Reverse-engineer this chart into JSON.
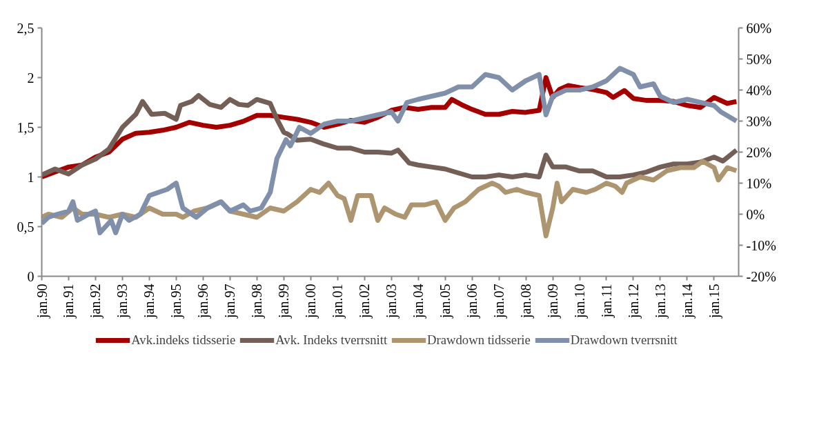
{
  "chart_data": {
    "type": "line",
    "xlim": [
      "1990-01",
      "2015-12"
    ],
    "xticks": [
      {
        "value": "1990-01",
        "label": "jan.90"
      },
      {
        "value": "1991-01",
        "label": "jan.91"
      },
      {
        "value": "1992-01",
        "label": "jan.92"
      },
      {
        "value": "1993-01",
        "label": "jan.93"
      },
      {
        "value": "1994-01",
        "label": "jan.94"
      },
      {
        "value": "1995-01",
        "label": "jan.95"
      },
      {
        "value": "1996-01",
        "label": "jan.96"
      },
      {
        "value": "1997-01",
        "label": "jan.97"
      },
      {
        "value": "1998-01",
        "label": "jan.98"
      },
      {
        "value": "1999-01",
        "label": "jan.99"
      },
      {
        "value": "2000-01",
        "label": "jan.00"
      },
      {
        "value": "2001-01",
        "label": "jan.01"
      },
      {
        "value": "2002-01",
        "label": "jan.02"
      },
      {
        "value": "2003-01",
        "label": "jan.03"
      },
      {
        "value": "2004-01",
        "label": "jan.04"
      },
      {
        "value": "2005-01",
        "label": "jan.05"
      },
      {
        "value": "2006-01",
        "label": "jan.06"
      },
      {
        "value": "2007-01",
        "label": "jan.07"
      },
      {
        "value": "2008-01",
        "label": "jan.08"
      },
      {
        "value": "2009-01",
        "label": "jan.09"
      },
      {
        "value": "2010-01",
        "label": "jan.10"
      },
      {
        "value": "2011-01",
        "label": "jan.11"
      },
      {
        "value": "2012-01",
        "label": "jan.12"
      },
      {
        "value": "2013-01",
        "label": "jan.13"
      },
      {
        "value": "2014-01",
        "label": "jan.14"
      },
      {
        "value": "2015-01",
        "label": "jan.15"
      }
    ],
    "ylim": [
      0,
      2.5
    ],
    "yticks": [
      0,
      {
        "value": 0.5,
        "label": "0,5"
      },
      1,
      {
        "value": 1.5,
        "label": "1,5"
      },
      2,
      {
        "value": 2.5,
        "label": "2,5"
      }
    ],
    "y2lim": [
      -20,
      60
    ],
    "y2ticks": [
      {
        "value": -20,
        "label": "-20%"
      },
      {
        "value": -10,
        "label": "-10%"
      },
      {
        "value": 0,
        "label": "0%"
      },
      {
        "value": 10,
        "label": "10%"
      },
      {
        "value": 20,
        "label": "20%"
      },
      {
        "value": 30,
        "label": "30%"
      },
      {
        "value": 40,
        "label": "40%"
      },
      {
        "value": 50,
        "label": "50%"
      },
      {
        "value": 60,
        "label": "60%"
      }
    ],
    "grid": false,
    "legend": "bottom",
    "marker": "none",
    "line_style": "solid",
    "series": [
      {
        "name": "Avk.indeks tidsserie",
        "color": "#a50000",
        "x": [
          "1990-01",
          "1990-07",
          "1991-01",
          "1991-07",
          "1992-01",
          "1992-07",
          "1993-01",
          "1993-07",
          "1994-01",
          "1994-07",
          "1995-01",
          "1995-07",
          "1996-01",
          "1996-07",
          "1997-01",
          "1997-07",
          "1998-01",
          "1998-07",
          "1999-01",
          "1999-07",
          "2000-01",
          "2000-07",
          "2001-01",
          "2001-07",
          "2002-01",
          "2002-07",
          "2003-01",
          "2003-07",
          "2004-01",
          "2004-07",
          "2005-01",
          "2005-04",
          "2005-09",
          "2006-01",
          "2006-07",
          "2007-01",
          "2007-07",
          "2008-01",
          "2008-07",
          "2008-10",
          "2009-01",
          "2009-04",
          "2009-08",
          "2010-01",
          "2010-07",
          "2011-01",
          "2011-04",
          "2011-09",
          "2012-01",
          "2012-07",
          "2013-01",
          "2013-07",
          "2014-01",
          "2014-07",
          "2015-01",
          "2015-07",
          "2015-11"
        ],
        "values": [
          1.0,
          1.05,
          1.1,
          1.12,
          1.2,
          1.25,
          1.38,
          1.44,
          1.45,
          1.47,
          1.5,
          1.55,
          1.52,
          1.5,
          1.52,
          1.56,
          1.62,
          1.62,
          1.6,
          1.58,
          1.55,
          1.5,
          1.53,
          1.57,
          1.55,
          1.6,
          1.67,
          1.7,
          1.68,
          1.7,
          1.7,
          1.78,
          1.72,
          1.68,
          1.63,
          1.63,
          1.66,
          1.65,
          1.67,
          2.0,
          1.8,
          1.88,
          1.92,
          1.9,
          1.88,
          1.85,
          1.8,
          1.87,
          1.79,
          1.77,
          1.77,
          1.76,
          1.72,
          1.7,
          1.8,
          1.74,
          1.76
        ]
      },
      {
        "name": "Avk. Indeks tverrsnitt",
        "color": "#735f55",
        "x": [
          "1990-01",
          "1990-07",
          "1991-01",
          "1991-07",
          "1992-01",
          "1992-07",
          "1993-01",
          "1993-07",
          "1993-10",
          "1994-02",
          "1994-08",
          "1995-01",
          "1995-03",
          "1995-08",
          "1995-11",
          "1996-04",
          "1996-09",
          "1997-01",
          "1997-05",
          "1997-09",
          "1998-01",
          "1998-07",
          "1998-10",
          "1999-01",
          "1999-03",
          "1999-07",
          "2000-01",
          "2000-07",
          "2001-01",
          "2001-07",
          "2002-01",
          "2002-07",
          "2003-01",
          "2003-04",
          "2003-09",
          "2004-01",
          "2004-07",
          "2005-01",
          "2005-07",
          "2006-01",
          "2006-07",
          "2007-01",
          "2007-07",
          "2008-01",
          "2008-07",
          "2008-10",
          "2009-01",
          "2009-07",
          "2010-01",
          "2010-07",
          "2011-01",
          "2011-07",
          "2012-01",
          "2012-07",
          "2013-01",
          "2013-07",
          "2014-01",
          "2014-07",
          "2015-01",
          "2015-05",
          "2015-11"
        ],
        "values": [
          1.02,
          1.08,
          1.03,
          1.12,
          1.18,
          1.28,
          1.5,
          1.63,
          1.76,
          1.63,
          1.64,
          1.58,
          1.72,
          1.76,
          1.82,
          1.73,
          1.7,
          1.78,
          1.73,
          1.72,
          1.78,
          1.74,
          1.58,
          1.45,
          1.43,
          1.37,
          1.38,
          1.33,
          1.29,
          1.29,
          1.25,
          1.25,
          1.24,
          1.27,
          1.14,
          1.12,
          1.1,
          1.08,
          1.04,
          1.0,
          1.0,
          1.02,
          1.0,
          1.02,
          1.0,
          1.22,
          1.1,
          1.1,
          1.06,
          1.06,
          1.0,
          1.0,
          1.02,
          1.05,
          1.1,
          1.13,
          1.13,
          1.15,
          1.2,
          1.16,
          1.27
        ]
      },
      {
        "name": "Drawdown tidsserie",
        "color": "#ad9570",
        "axis": "y2",
        "x": [
          "1990-01",
          "1990-04",
          "1990-10",
          "1991-03",
          "1991-07",
          "1992-01",
          "1992-07",
          "1993-01",
          "1993-07",
          "1994-01",
          "1994-07",
          "1995-01",
          "1995-04",
          "1995-09",
          "1996-03",
          "1996-09",
          "1997-01",
          "1997-07",
          "1998-01",
          "1998-07",
          "1999-01",
          "1999-07",
          "2000-01",
          "2000-05",
          "2000-09",
          "2001-01",
          "2001-04",
          "2001-07",
          "2001-10",
          "2002-04",
          "2002-07",
          "2002-10",
          "2003-03",
          "2003-07",
          "2003-10",
          "2004-04",
          "2004-09",
          "2005-01",
          "2005-05",
          "2005-10",
          "2006-04",
          "2006-10",
          "2007-01",
          "2007-04",
          "2007-09",
          "2008-01",
          "2008-07",
          "2008-10",
          "2009-01",
          "2009-03",
          "2009-05",
          "2009-10",
          "2010-04",
          "2010-08",
          "2011-01",
          "2011-05",
          "2011-08",
          "2011-10",
          "2012-04",
          "2012-10",
          "2013-04",
          "2013-10",
          "2014-04",
          "2014-08",
          "2015-01",
          "2015-03",
          "2015-07",
          "2015-11"
        ],
        "values": [
          -1,
          0,
          -1,
          2,
          0,
          0,
          -1,
          0,
          -1,
          2,
          0,
          0,
          -1,
          1,
          2,
          4,
          1,
          0,
          -1,
          2,
          1,
          4,
          8,
          7,
          10,
          6,
          5,
          -2,
          6,
          6,
          -2,
          2,
          0,
          -1,
          3,
          3,
          4,
          -2,
          2,
          4,
          8,
          10,
          9,
          7,
          8,
          7,
          6,
          -7,
          2,
          10,
          4,
          8,
          7,
          8,
          10,
          9,
          7,
          10,
          12,
          11,
          14,
          15,
          15,
          17,
          15,
          11,
          15,
          14
        ]
      },
      {
        "name": "Drawdown tverrsnitt",
        "color": "#8190aa",
        "axis": "y2",
        "x": [
          "1990-01",
          "1990-04",
          "1990-08",
          "1991-01",
          "1991-03",
          "1991-05",
          "1991-10",
          "1992-01",
          "1992-03",
          "1992-08",
          "1992-10",
          "1993-01",
          "1993-04",
          "1993-09",
          "1994-01",
          "1994-05",
          "1994-09",
          "1995-01",
          "1995-04",
          "1995-10",
          "1996-03",
          "1996-09",
          "1997-01",
          "1997-07",
          "1997-10",
          "1998-03",
          "1998-07",
          "1998-10",
          "1999-02",
          "1999-04",
          "1999-08",
          "2000-01",
          "2000-07",
          "2001-01",
          "2001-07",
          "2002-01",
          "2002-07",
          "2003-01",
          "2003-04",
          "2003-08",
          "2004-01",
          "2004-07",
          "2005-01",
          "2005-07",
          "2006-01",
          "2006-07",
          "2007-01",
          "2007-07",
          "2008-01",
          "2008-07",
          "2008-10",
          "2009-01",
          "2009-07",
          "2010-01",
          "2010-07",
          "2011-01",
          "2011-07",
          "2012-01",
          "2012-04",
          "2012-10",
          "2013-01",
          "2013-07",
          "2014-01",
          "2014-07",
          "2015-01",
          "2015-04",
          "2015-11"
        ],
        "values": [
          -3,
          -1,
          0,
          1,
          4,
          -2,
          0,
          1,
          -6,
          -2,
          -6,
          0,
          -2,
          0,
          6,
          7,
          8,
          10,
          2,
          -1,
          2,
          4,
          1,
          3,
          1,
          2,
          7,
          18,
          24,
          22,
          28,
          26,
          29,
          30,
          30,
          31,
          32,
          33,
          30,
          36,
          37,
          38,
          39,
          41,
          41,
          45,
          44,
          40,
          43,
          45,
          32,
          38,
          40,
          40,
          41,
          43,
          47,
          45,
          41,
          42,
          38,
          36,
          37,
          36,
          35,
          33,
          30
        ]
      }
    ]
  }
}
